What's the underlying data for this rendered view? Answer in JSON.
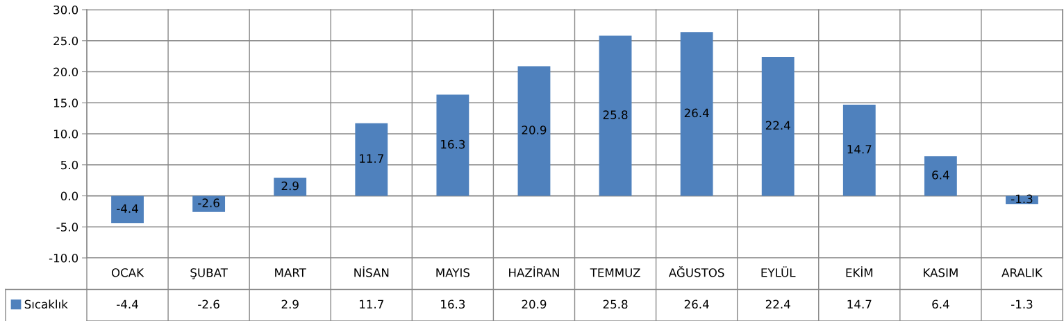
{
  "chart_data": {
    "type": "bar",
    "categories": [
      "OCAK",
      "ŞUBAT",
      "MART",
      "NİSAN",
      "MAYIS",
      "HAZİRAN",
      "TEMMUZ",
      "AĞUSTOS",
      "EYLÜL",
      "EKİM",
      "KASIM",
      "ARALIK"
    ],
    "series": [
      {
        "name": "Sıcaklık",
        "color": "#4f81bd",
        "values": [
          -4.4,
          -2.6,
          2.9,
          11.7,
          16.3,
          20.9,
          25.8,
          26.4,
          22.4,
          14.7,
          6.4,
          -1.3
        ],
        "value_labels": [
          "-4.4",
          "-2.6",
          "2.9",
          "11.7",
          "16.3",
          "20.9",
          "25.8",
          "26.4",
          "22.4",
          "14.7",
          "6.4",
          "-1.3"
        ]
      }
    ],
    "annotations": [
      "-4.4",
      "-2.6",
      "2.9",
      "11.7",
      "16.3",
      "20.9",
      "25.8",
      "26.4",
      "22.4",
      "14.7",
      "6.4",
      "-1.3"
    ],
    "ylim": [
      -10,
      30
    ],
    "yticks": [
      {
        "value": -10,
        "label": "-10.0"
      },
      {
        "value": -5,
        "label": "-5.0"
      },
      {
        "value": 0,
        "label": "0.0"
      },
      {
        "value": 5,
        "label": "5.0"
      },
      {
        "value": 10,
        "label": "10.0"
      },
      {
        "value": 15,
        "label": "15.0"
      },
      {
        "value": 20,
        "label": "20.0"
      },
      {
        "value": 25,
        "label": "25.0"
      },
      {
        "value": 30,
        "label": "30.0"
      }
    ],
    "grid": "y",
    "legend": "bottom left"
  }
}
